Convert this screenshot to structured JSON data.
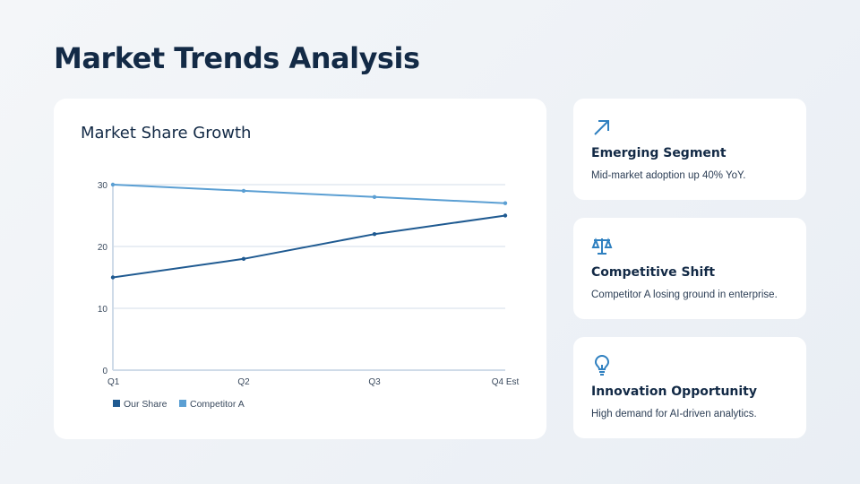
{
  "page_title": "Market Trends Analysis",
  "chart_title": "Market Share Growth",
  "chart_data": {
    "type": "line",
    "title": "Market Share Growth",
    "categories": [
      "Q1",
      "Q2",
      "Q3",
      "Q4 Est"
    ],
    "series": [
      {
        "name": "Our Share",
        "values": [
          15,
          18,
          22,
          25
        ],
        "color": "#1f5a91"
      },
      {
        "name": "Competitor A",
        "values": [
          30,
          29,
          28,
          27
        ],
        "color": "#5b9fd3"
      }
    ],
    "ylim": [
      0,
      30
    ],
    "yticks": [
      "0",
      "10",
      "20",
      "30"
    ],
    "grid": true,
    "legend": "bottom-left"
  },
  "cards": [
    {
      "icon": "arrow-up-right-icon",
      "title": "Emerging Segment",
      "text": "Mid-market adoption up 40% YoY."
    },
    {
      "icon": "balance-scale-icon",
      "title": "Competitive Shift",
      "text": "Competitor A losing ground in enterprise."
    },
    {
      "icon": "lightbulb-icon",
      "title": "Innovation Opportunity",
      "text": "High demand for AI-driven analytics."
    }
  ],
  "accent": "#2f80c0"
}
